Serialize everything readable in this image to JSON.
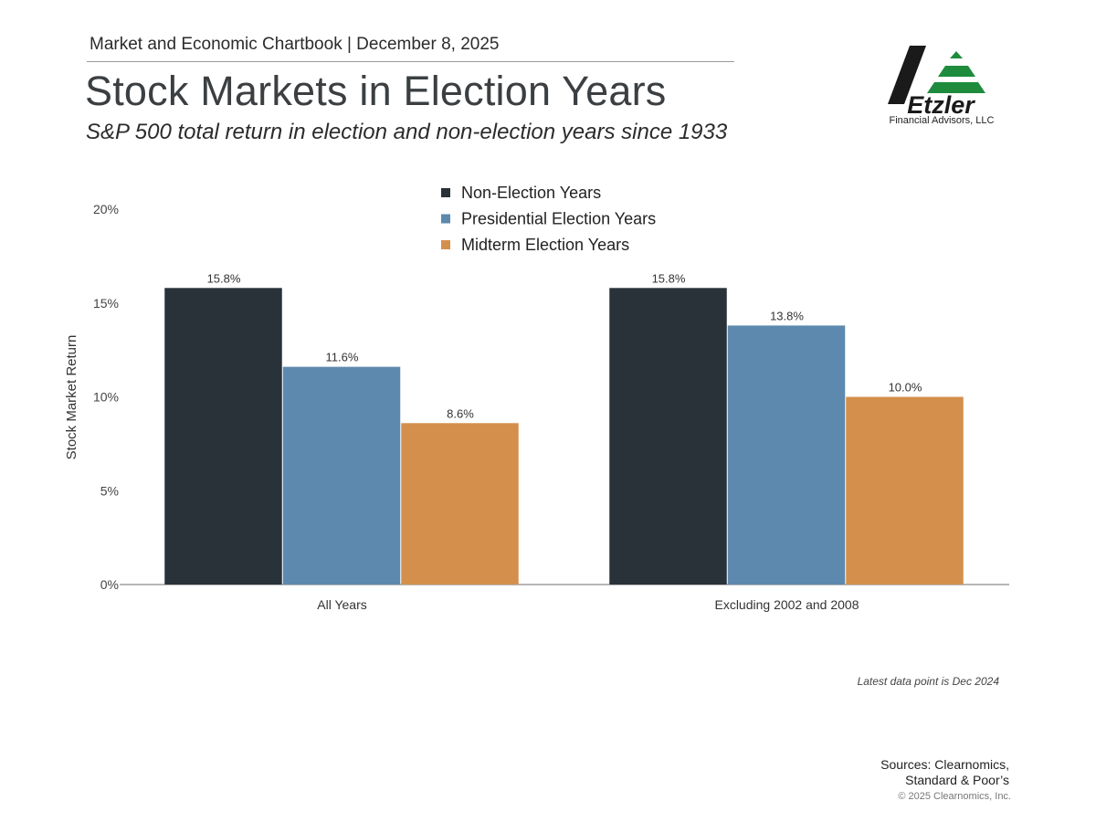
{
  "header": {
    "chartbook": "Market and Economic Chartbook | December 8, 2025",
    "title": "Stock Markets in Election Years",
    "subtitle": "S&P 500 total return in election and non-election years since 1933"
  },
  "logo": {
    "name": "Etzler",
    "tagline": "Financial Advisors, LLC",
    "accent_color": "#1e8c3c"
  },
  "chart_data": {
    "type": "bar",
    "title": "Stock Markets in Election Years",
    "xlabel": "",
    "ylabel": "Stock Market Return",
    "ylim": [
      0,
      20
    ],
    "yticks": [
      0,
      5,
      10,
      15,
      20
    ],
    "ytick_labels": [
      "0%",
      "5%",
      "10%",
      "15%",
      "20%"
    ],
    "categories": [
      "All Years",
      "Excluding 2002 and 2008"
    ],
    "series": [
      {
        "name": "Non-Election Years",
        "values": [
          15.8,
          15.8
        ],
        "labels": [
          "15.8%",
          "15.8%"
        ],
        "color": "#283238"
      },
      {
        "name": "Presidential Election Years",
        "values": [
          11.6,
          13.8
        ],
        "labels": [
          "11.6%",
          "13.8%"
        ],
        "color": "#5d89ae"
      },
      {
        "name": "Midterm Election Years",
        "values": [
          8.6,
          10.0
        ],
        "labels": [
          "8.6%",
          "10.0%"
        ],
        "color": "#d48f4c"
      }
    ],
    "legend_position": "top-center",
    "grid": false
  },
  "footer": {
    "note": "Latest data point is Dec 2024",
    "sources_line1": "Sources: Clearnomics,",
    "sources_line2": "Standard & Poor’s",
    "copyright": "© 2025 Clearnomics, Inc."
  }
}
